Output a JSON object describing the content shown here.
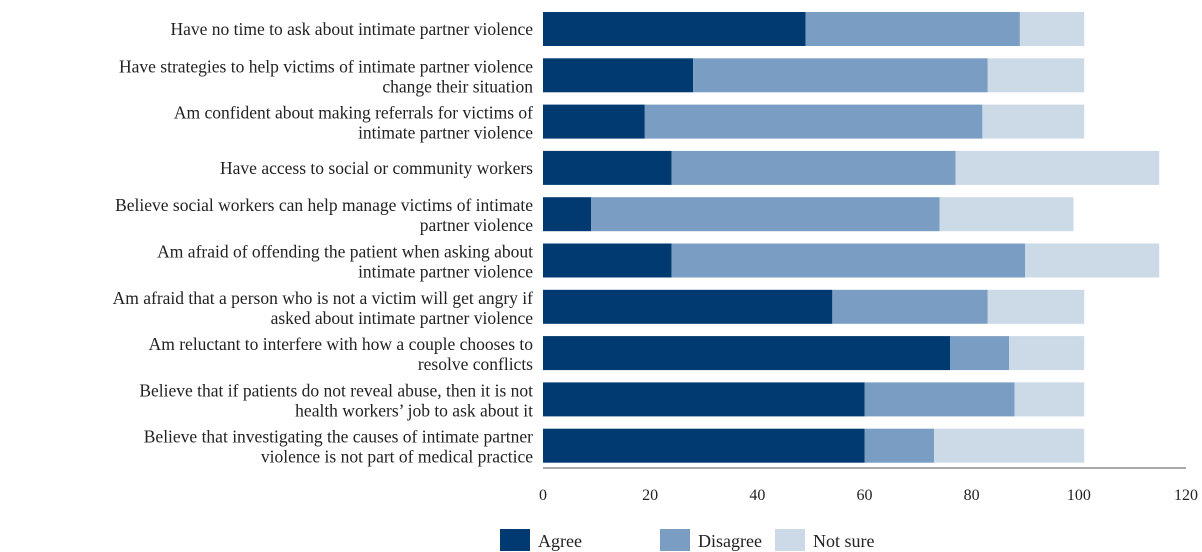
{
  "chart_data": {
    "type": "bar",
    "orientation": "horizontal",
    "stacked": true,
    "categories": [
      [
        "Have no time to ask about intimate partner violence"
      ],
      [
        "Have strategies to help victims of intimate partner violence",
        "change their situation"
      ],
      [
        "Am confident about making referrals for victims of",
        "intimate partner violence"
      ],
      [
        "Have access to social or community workers"
      ],
      [
        "Believe social workers can help manage victims of intimate",
        "partner violence"
      ],
      [
        "Am afraid of offending the patient when asking about",
        "intimate partner violence"
      ],
      [
        "Am afraid that a person who is not a victim will get angry if",
        "asked about intimate partner violence"
      ],
      [
        "Am reluctant to interfere with how a couple chooses to",
        "resolve conflicts"
      ],
      [
        "Believe that if patients do not reveal abuse, then it is not",
        "health workers’ job to ask about it"
      ],
      [
        "Believe that investigating the causes of intimate partner",
        "violence is not part of medical practice"
      ]
    ],
    "series": [
      {
        "name": "Agree",
        "color": "#003a70",
        "values": [
          49,
          28,
          19,
          24,
          9,
          24,
          54,
          76,
          60,
          60
        ]
      },
      {
        "name": "Disagree",
        "color": "#7a9dc3",
        "values": [
          40,
          55,
          63,
          53,
          65,
          66,
          29,
          11,
          28,
          13
        ]
      },
      {
        "name": "Not sure",
        "color": "#ccd9e7",
        "values": [
          12,
          18,
          19,
          38,
          25,
          25,
          18,
          14,
          13,
          28
        ]
      }
    ],
    "xlim": [
      0,
      120
    ],
    "xticks": [
      "0",
      "20",
      "40",
      "60",
      "80",
      "100",
      "120"
    ],
    "legend_position": "bottom",
    "grid": false
  }
}
